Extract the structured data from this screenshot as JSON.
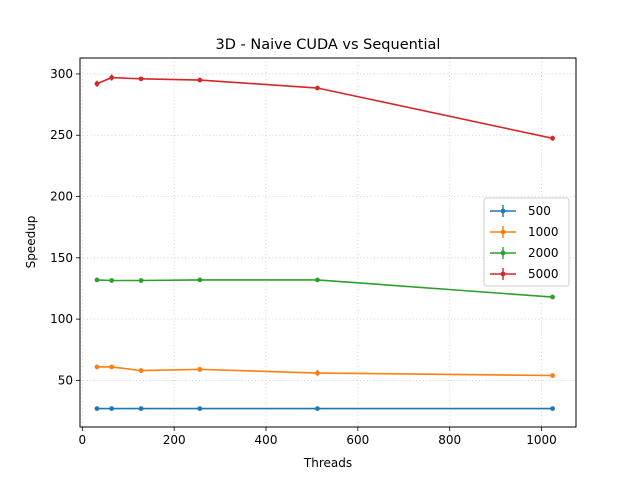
{
  "chart_data": {
    "type": "line",
    "title": "3D - Naive CUDA vs Sequential",
    "xlabel": "Threads",
    "ylabel": "Speedup",
    "xlim": [
      -5,
      1075
    ],
    "ylim": [
      12,
      313
    ],
    "xticks": [
      0,
      200,
      400,
      600,
      800,
      1000
    ],
    "yticks": [
      50,
      100,
      150,
      200,
      250,
      300
    ],
    "grid": true,
    "grid_style": "dotted",
    "legend_position": "center-right",
    "x": [
      32,
      64,
      128,
      256,
      512,
      1024
    ],
    "series": [
      {
        "name": "500",
        "color": "#1f77b4",
        "values": [
          27,
          27,
          27,
          27,
          27,
          27
        ],
        "errors": [
          0.5,
          0.5,
          0.5,
          0.5,
          0.5,
          0.5
        ]
      },
      {
        "name": "1000",
        "color": "#ff7f0e",
        "values": [
          61,
          61,
          58,
          59,
          56,
          54
        ],
        "errors": [
          1,
          1,
          2,
          2,
          2.5,
          1
        ]
      },
      {
        "name": "2000",
        "color": "#2ca02c",
        "values": [
          132,
          131.5,
          131.5,
          132,
          132,
          118
        ],
        "errors": [
          1,
          1,
          1,
          1,
          1,
          1
        ]
      },
      {
        "name": "5000",
        "color": "#d62728",
        "values": [
          292,
          297,
          296,
          295,
          288.5,
          247.5
        ],
        "errors": [
          2.5,
          2.5,
          1.5,
          1,
          1.5,
          2
        ]
      }
    ]
  }
}
